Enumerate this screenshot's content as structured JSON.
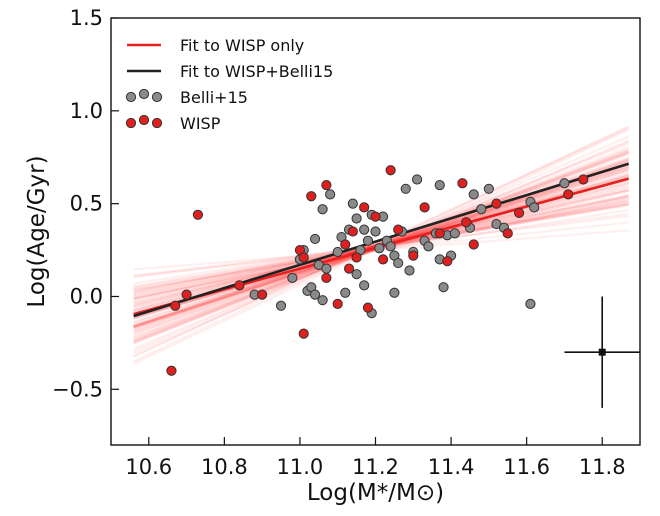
{
  "chart_data": {
    "type": "scatter",
    "xlabel": "Log(M*/M⊙)",
    "ylabel": "Log(Age/Gyr)",
    "xlim": [
      10.5,
      11.9
    ],
    "ylim": [
      -0.8,
      1.5
    ],
    "xticks": [
      10.6,
      10.8,
      11.0,
      11.2,
      11.4,
      11.6,
      11.8
    ],
    "xtick_labels": [
      "10.6",
      "10.8",
      "11.0",
      "11.2",
      "11.4",
      "11.6",
      "11.8"
    ],
    "yticks": [
      -0.5,
      0.0,
      0.5,
      1.0,
      1.5
    ],
    "ytick_labels": [
      "−0.5",
      "0.0",
      "0.5",
      "1.0",
      "1.5"
    ],
    "grid": false,
    "legend_position": "top-left",
    "legend": [
      {
        "label": "Fit to WISP only",
        "kind": "line",
        "color": "#e8211f"
      },
      {
        "label": "Fit to WISP+Belli15",
        "kind": "line",
        "color": "#222222"
      },
      {
        "label": "Belli+15",
        "kind": "markers",
        "color": "#8a8a8a"
      },
      {
        "label": "WISP",
        "kind": "markers",
        "color": "#e0201e"
      }
    ],
    "fits": [
      {
        "label": "Fit to WISP only",
        "x": [
          10.56,
          11.87
        ],
        "y": [
          -0.095,
          0.635
        ],
        "color": "#e8211f"
      },
      {
        "label": "Fit to WISP+Belli15",
        "x": [
          10.56,
          11.87
        ],
        "y": [
          -0.105,
          0.715
        ],
        "color": "#222222"
      }
    ],
    "fit_samples": {
      "count": 90,
      "x_range": [
        10.56,
        11.87
      ],
      "pivot_x": 11.2,
      "pivot_y": 0.265,
      "slope_center": 0.56,
      "slope_spread": 0.32,
      "color": "#ff2a2a"
    },
    "series": [
      {
        "name": "Belli+15",
        "color": "#8a8a8a",
        "points": [
          [
            10.95,
            -0.05
          ],
          [
            10.98,
            0.1
          ],
          [
            11.0,
            0.2
          ],
          [
            11.01,
            0.25
          ],
          [
            11.02,
            0.03
          ],
          [
            11.03,
            0.05
          ],
          [
            11.04,
            0.01
          ],
          [
            11.04,
            0.31
          ],
          [
            11.05,
            0.17
          ],
          [
            11.06,
            0.47
          ],
          [
            11.06,
            -0.02
          ],
          [
            11.07,
            0.15
          ],
          [
            11.08,
            0.55
          ],
          [
            11.1,
            0.24
          ],
          [
            11.11,
            0.32
          ],
          [
            11.13,
            0.36
          ],
          [
            11.14,
            0.5
          ],
          [
            11.15,
            0.42
          ],
          [
            11.16,
            0.25
          ],
          [
            11.17,
            0.36
          ],
          [
            11.18,
            0.3
          ],
          [
            11.19,
            0.44
          ],
          [
            11.2,
            0.35
          ],
          [
            11.21,
            0.26
          ],
          [
            11.22,
            0.43
          ],
          [
            11.23,
            0.3
          ],
          [
            11.24,
            0.27
          ],
          [
            11.25,
            0.22
          ],
          [
            11.26,
            0.18
          ],
          [
            11.27,
            0.35
          ],
          [
            11.28,
            0.58
          ],
          [
            11.29,
            0.14
          ],
          [
            11.3,
            0.24
          ],
          [
            11.31,
            0.63
          ],
          [
            11.33,
            0.3
          ],
          [
            11.34,
            0.27
          ],
          [
            11.36,
            0.34
          ],
          [
            11.37,
            0.2
          ],
          [
            11.37,
            0.6
          ],
          [
            11.38,
            0.05
          ],
          [
            11.39,
            0.33
          ],
          [
            11.4,
            0.22
          ],
          [
            11.41,
            0.34
          ],
          [
            11.45,
            0.37
          ],
          [
            11.46,
            0.55
          ],
          [
            11.48,
            0.47
          ],
          [
            11.5,
            0.58
          ],
          [
            11.52,
            0.39
          ],
          [
            11.54,
            0.37
          ],
          [
            11.61,
            0.51
          ],
          [
            11.62,
            0.48
          ],
          [
            11.61,
            -0.04
          ],
          [
            11.7,
            0.61
          ],
          [
            11.17,
            0.06
          ],
          [
            11.19,
            -0.09
          ],
          [
            11.25,
            0.02
          ],
          [
            10.88,
            0.01
          ],
          [
            11.12,
            0.02
          ],
          [
            11.15,
            0.12
          ]
        ]
      },
      {
        "name": "WISP",
        "color": "#e0201e",
        "points": [
          [
            10.66,
            -0.4
          ],
          [
            10.67,
            -0.05
          ],
          [
            10.7,
            0.01
          ],
          [
            10.73,
            0.44
          ],
          [
            10.84,
            0.06
          ],
          [
            10.9,
            0.01
          ],
          [
            11.0,
            0.25
          ],
          [
            11.01,
            -0.2
          ],
          [
            11.03,
            0.54
          ],
          [
            11.07,
            0.6
          ],
          [
            11.1,
            -0.04
          ],
          [
            11.12,
            0.28
          ],
          [
            11.14,
            0.35
          ],
          [
            11.15,
            0.21
          ],
          [
            11.17,
            0.48
          ],
          [
            11.2,
            0.43
          ],
          [
            11.22,
            0.2
          ],
          [
            11.24,
            0.68
          ],
          [
            11.26,
            0.36
          ],
          [
            11.33,
            0.48
          ],
          [
            11.37,
            0.34
          ],
          [
            11.43,
            0.61
          ],
          [
            11.44,
            0.4
          ],
          [
            11.55,
            0.34
          ],
          [
            11.71,
            0.55
          ],
          [
            11.75,
            0.63
          ],
          [
            11.01,
            0.21
          ],
          [
            11.18,
            -0.06
          ],
          [
            11.13,
            0.15
          ],
          [
            11.39,
            0.19
          ],
          [
            11.52,
            0.5
          ],
          [
            11.07,
            0.1
          ],
          [
            11.3,
            0.22
          ],
          [
            11.46,
            0.28
          ],
          [
            11.58,
            0.45
          ]
        ]
      }
    ],
    "error_bar": {
      "x": 11.8,
      "y": -0.3,
      "xerr": 0.1,
      "yerr": 0.3,
      "color": "#111111"
    }
  }
}
